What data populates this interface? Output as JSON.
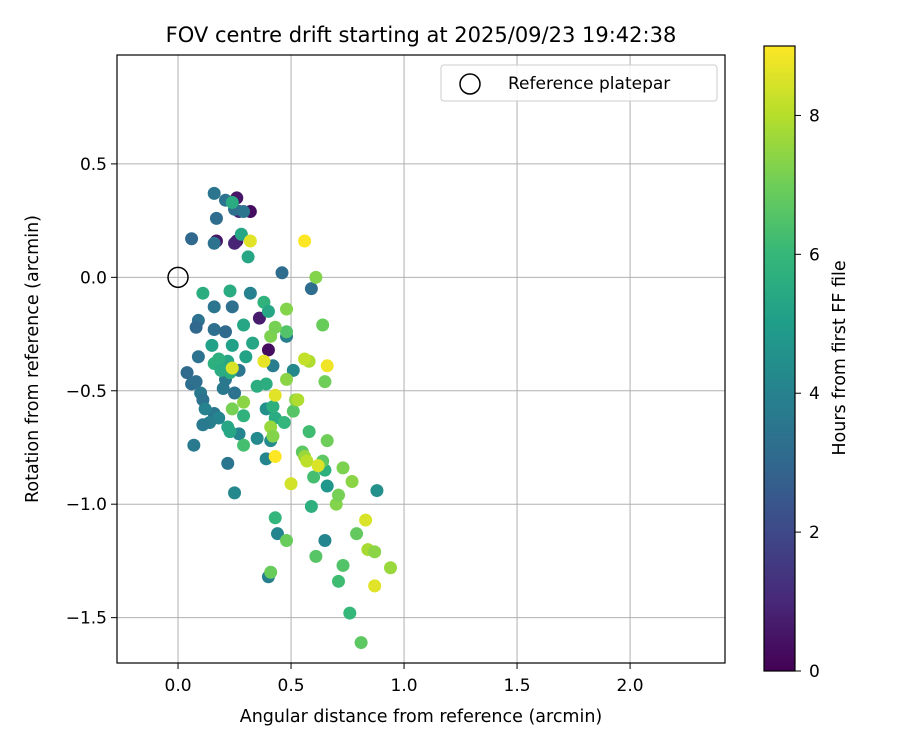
{
  "chart_data": {
    "type": "scatter",
    "title": "FOV centre drift starting at 2025/09/23 19:42:38",
    "xlabel": "Angular distance from reference (arcmin)",
    "ylabel": "Rotation from reference (arcmin)",
    "xlim": [
      -0.27,
      2.42
    ],
    "ylim": [
      -1.7,
      0.98
    ],
    "xticks": [
      0.0,
      0.5,
      1.0,
      1.5,
      2.0
    ],
    "xtick_labels": [
      "0.0",
      "0.5",
      "1.0",
      "1.5",
      "2.0"
    ],
    "yticks": [
      -1.5,
      -1.0,
      -0.5,
      0.0,
      0.5
    ],
    "ytick_labels": [
      "−1.5",
      "−1.0",
      "−0.5",
      "0.0",
      "0.5"
    ],
    "grid": true,
    "legend": {
      "position": "top-right",
      "entries": [
        "Reference platepar"
      ]
    },
    "reference_point": {
      "x": 0.0,
      "y": 0.0,
      "marker": "open-circle"
    },
    "colorbar": {
      "label": "Hours from first FF file",
      "range": [
        0,
        9
      ],
      "ticks": [
        0,
        2,
        4,
        6,
        8
      ],
      "tick_labels": [
        "0",
        "2",
        "4",
        "6",
        "8"
      ],
      "colormap": "viridis"
    },
    "series": [
      {
        "name": "FOV centre drift",
        "columns": [
          "x",
          "y",
          "hours"
        ],
        "points": [
          [
            0.26,
            0.35,
            0.5
          ],
          [
            0.32,
            0.29,
            0.3
          ],
          [
            0.27,
            0.29,
            1.0
          ],
          [
            0.17,
            0.16,
            0.5
          ],
          [
            0.26,
            0.16,
            0.6
          ],
          [
            0.25,
            0.15,
            0.9
          ],
          [
            0.36,
            -0.18,
            0.7
          ],
          [
            0.4,
            -0.32,
            0.3
          ],
          [
            0.16,
            0.37,
            3.5
          ],
          [
            0.21,
            0.34,
            3.4
          ],
          [
            0.25,
            0.3,
            3.3
          ],
          [
            0.29,
            0.29,
            3.5
          ],
          [
            0.17,
            0.26,
            3.2
          ],
          [
            0.06,
            0.17,
            3.0
          ],
          [
            0.16,
            0.15,
            3.4
          ],
          [
            0.46,
            0.02,
            3.2
          ],
          [
            0.59,
            -0.05,
            3.2
          ],
          [
            0.09,
            -0.19,
            3.4
          ],
          [
            0.16,
            -0.23,
            3.3
          ],
          [
            0.08,
            -0.22,
            3.0
          ],
          [
            0.21,
            -0.24,
            3.1
          ],
          [
            0.24,
            -0.13,
            3.3
          ],
          [
            0.16,
            -0.13,
            3.5
          ],
          [
            0.32,
            -0.07,
            4.0
          ],
          [
            0.48,
            -0.26,
            3.9
          ],
          [
            0.42,
            -0.39,
            3.8
          ],
          [
            0.27,
            -0.41,
            3.5
          ],
          [
            0.21,
            -0.45,
            3.6
          ],
          [
            0.09,
            -0.35,
            3.4
          ],
          [
            0.04,
            -0.42,
            3.1
          ],
          [
            0.06,
            -0.47,
            3.2
          ],
          [
            0.08,
            -0.46,
            3.3
          ],
          [
            0.18,
            -0.38,
            3.3
          ],
          [
            0.2,
            -0.49,
            3.6
          ],
          [
            0.25,
            -0.51,
            3.4
          ],
          [
            0.1,
            -0.51,
            3.6
          ],
          [
            0.11,
            -0.54,
            3.4
          ],
          [
            0.16,
            -0.6,
            3.6
          ],
          [
            0.18,
            -0.62,
            4.1
          ],
          [
            0.12,
            -0.58,
            4.0
          ],
          [
            0.14,
            -0.64,
            3.9
          ],
          [
            0.11,
            -0.65,
            3.7
          ],
          [
            0.07,
            -0.74,
            3.7
          ],
          [
            0.22,
            -0.82,
            3.5
          ],
          [
            0.25,
            -0.95,
            4.2
          ],
          [
            0.27,
            -0.69,
            4.1
          ],
          [
            0.39,
            -0.8,
            4.1
          ],
          [
            0.41,
            -0.72,
            4.3
          ],
          [
            0.39,
            -0.58,
            4.5
          ],
          [
            0.35,
            -0.71,
            4.3
          ],
          [
            0.44,
            -1.13,
            4.1
          ],
          [
            0.4,
            -1.32,
            3.9
          ],
          [
            0.51,
            -0.41,
            4.2
          ],
          [
            0.65,
            -1.16,
            4.1
          ],
          [
            0.66,
            -0.92,
            4.7
          ],
          [
            0.88,
            -0.94,
            4.5
          ],
          [
            0.23,
            -0.06,
            5.5
          ],
          [
            0.28,
            0.19,
            5.3
          ],
          [
            0.24,
            0.33,
            5.5
          ],
          [
            0.31,
            0.09,
            5.3
          ],
          [
            0.11,
            -0.07,
            5.6
          ],
          [
            0.15,
            -0.3,
            5.1
          ],
          [
            0.24,
            -0.3,
            5.1
          ],
          [
            0.29,
            -0.21,
            5.3
          ],
          [
            0.33,
            -0.29,
            5.3
          ],
          [
            0.3,
            -0.35,
            5.2
          ],
          [
            0.22,
            -0.37,
            5.3
          ],
          [
            0.18,
            -0.36,
            5.7
          ],
          [
            0.16,
            -0.38,
            5.7
          ],
          [
            0.19,
            -0.41,
            5.5
          ],
          [
            0.23,
            -0.42,
            5.6
          ],
          [
            0.39,
            -0.47,
            5.6
          ],
          [
            0.35,
            -0.48,
            5.6
          ],
          [
            0.38,
            -0.11,
            5.8
          ],
          [
            0.4,
            -0.15,
            5.3
          ],
          [
            0.43,
            -0.62,
            5.5
          ],
          [
            0.42,
            -0.57,
            5.7
          ],
          [
            0.29,
            -0.61,
            5.8
          ],
          [
            0.22,
            -0.66,
            5.3
          ],
          [
            0.23,
            -0.68,
            5.3
          ],
          [
            0.29,
            -0.74,
            6.3
          ],
          [
            0.43,
            -1.06,
            5.9
          ],
          [
            0.47,
            -0.64,
            5.9
          ],
          [
            0.58,
            -0.68,
            6.2
          ],
          [
            0.59,
            -1.01,
            5.7
          ],
          [
            0.6,
            -0.88,
            6.3
          ],
          [
            0.65,
            -0.85,
            5.7
          ],
          [
            0.48,
            -0.24,
            6.5
          ],
          [
            0.51,
            -0.59,
            6.6
          ],
          [
            0.55,
            -0.77,
            6.7
          ],
          [
            0.64,
            -0.81,
            6.7
          ],
          [
            0.73,
            -1.27,
            6.5
          ],
          [
            0.76,
            -1.48,
            6.0
          ],
          [
            0.81,
            -1.61,
            6.7
          ],
          [
            0.71,
            -1.34,
            6.2
          ],
          [
            0.61,
            -1.23,
            6.6
          ],
          [
            0.79,
            -1.13,
            6.8
          ],
          [
            0.7,
            -1.0,
            7.3
          ],
          [
            0.73,
            -0.84,
            7.2
          ],
          [
            0.77,
            -0.9,
            7.4
          ],
          [
            0.71,
            -0.96,
            7.1
          ],
          [
            0.66,
            -0.72,
            7.0
          ],
          [
            0.65,
            -0.46,
            7.0
          ],
          [
            0.64,
            -0.21,
            6.9
          ],
          [
            0.61,
            -0.0,
            7.3
          ],
          [
            0.41,
            -0.26,
            7.2
          ],
          [
            0.43,
            -0.22,
            7.1
          ],
          [
            0.48,
            -0.14,
            7.3
          ],
          [
            0.48,
            -0.45,
            7.4
          ],
          [
            0.41,
            -0.66,
            7.6
          ],
          [
            0.42,
            -0.7,
            7.3
          ],
          [
            0.48,
            -1.16,
            6.9
          ],
          [
            0.41,
            -1.3,
            6.9
          ],
          [
            0.24,
            -0.58,
            7.1
          ],
          [
            0.29,
            -0.55,
            7.4
          ],
          [
            0.52,
            -0.54,
            7.4
          ],
          [
            0.53,
            -0.54,
            7.9
          ],
          [
            0.56,
            -0.79,
            7.6
          ],
          [
            0.57,
            -0.81,
            8.1
          ],
          [
            0.84,
            -1.2,
            7.8
          ],
          [
            0.87,
            -1.21,
            7.4
          ],
          [
            0.94,
            -1.28,
            7.6
          ],
          [
            0.58,
            -0.37,
            7.9
          ],
          [
            0.56,
            -0.36,
            8.2
          ],
          [
            0.66,
            -0.39,
            8.8
          ],
          [
            0.24,
            -0.4,
            8.5
          ],
          [
            0.32,
            0.16,
            8.6
          ],
          [
            0.56,
            0.16,
            9.0
          ],
          [
            0.38,
            -0.37,
            8.7
          ],
          [
            0.43,
            -0.52,
            8.6
          ],
          [
            0.43,
            -0.79,
            9.0
          ],
          [
            0.5,
            -0.91,
            8.4
          ],
          [
            0.62,
            -0.83,
            8.5
          ],
          [
            0.83,
            -1.07,
            8.5
          ],
          [
            0.87,
            -1.36,
            8.6
          ]
        ]
      }
    ]
  }
}
